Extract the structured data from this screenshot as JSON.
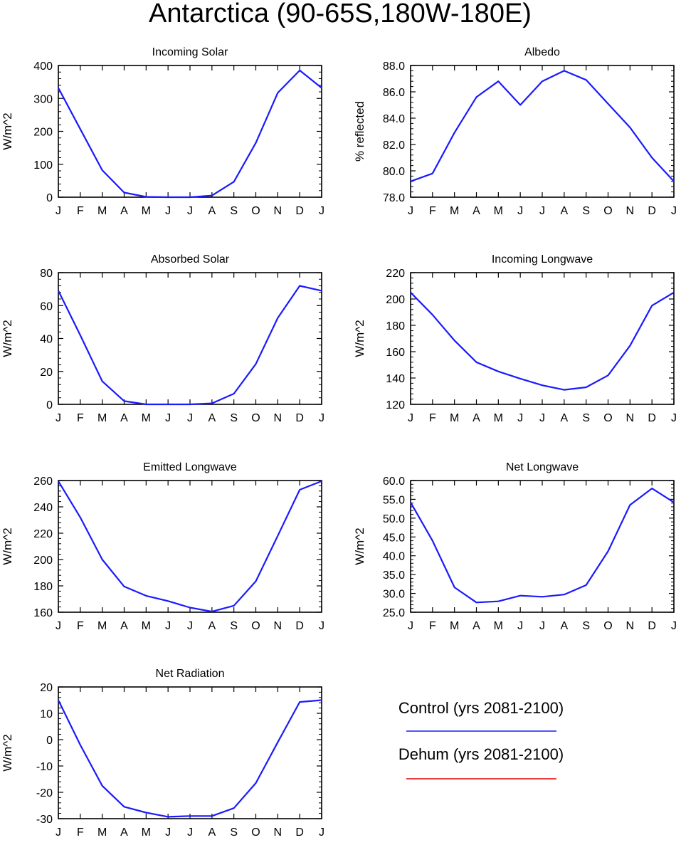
{
  "figure": {
    "title": "Antarctica (90-65S,180W-180E)"
  },
  "colors": {
    "control": "#1a1aff",
    "dehum": "#e60000",
    "axis": "#000000",
    "background": "#ffffff"
  },
  "legend": {
    "placement": "bottom-right",
    "entries": [
      {
        "label": "Control (yrs 2081-2100)",
        "color": "#1a1aff"
      },
      {
        "label": "Dehum (yrs 2081-2100)",
        "color": "#e60000"
      }
    ]
  },
  "chart_data": [
    {
      "id": "incoming-solar",
      "type": "line",
      "title": "Incoming Solar",
      "ylabel": "W/m^2",
      "xlabel": "",
      "x": [
        "J",
        "F",
        "M",
        "A",
        "M",
        "J",
        "J",
        "A",
        "S",
        "O",
        "N",
        "D",
        "J"
      ],
      "ylim": [
        0,
        400
      ],
      "yticks": [
        0,
        100,
        200,
        300,
        400
      ],
      "ytick_labels": [
        "0",
        "100",
        "200",
        "300",
        "400"
      ],
      "grid": false,
      "series": [
        {
          "values": [
            332,
            207,
            82,
            14,
            1,
            0,
            0,
            5,
            47,
            165,
            317,
            385,
            332
          ]
        }
      ]
    },
    {
      "id": "albedo",
      "type": "line",
      "title": "Albedo",
      "ylabel": "% reflected",
      "xlabel": "",
      "x": [
        "J",
        "F",
        "M",
        "A",
        "M",
        "J",
        "J",
        "A",
        "S",
        "O",
        "N",
        "D",
        "J"
      ],
      "ylim": [
        78,
        88
      ],
      "yticks": [
        78,
        80,
        82,
        84,
        86,
        88
      ],
      "ytick_labels": [
        "78.0",
        "80.0",
        "82.0",
        "84.0",
        "86.0",
        "88.0"
      ],
      "grid": false,
      "series": [
        {
          "values": [
            79.2,
            79.8,
            82.9,
            85.6,
            86.8,
            85.0,
            86.8,
            87.6,
            86.9,
            85.1,
            83.3,
            81.0,
            79.2
          ]
        }
      ]
    },
    {
      "id": "absorbed-solar",
      "type": "line",
      "title": "Absorbed Solar",
      "ylabel": "W/m^2",
      "xlabel": "",
      "x": [
        "J",
        "F",
        "M",
        "A",
        "M",
        "J",
        "J",
        "A",
        "S",
        "O",
        "N",
        "D",
        "J"
      ],
      "ylim": [
        0,
        80
      ],
      "yticks": [
        0,
        20,
        40,
        60,
        80
      ],
      "ytick_labels": [
        "0",
        "20",
        "40",
        "60",
        "80"
      ],
      "grid": false,
      "series": [
        {
          "values": [
            69,
            42,
            14,
            2,
            0,
            0,
            0,
            0.6,
            6.5,
            24.5,
            52.5,
            72,
            69
          ]
        }
      ]
    },
    {
      "id": "incoming-longwave",
      "type": "line",
      "title": "Incoming Longwave",
      "ylabel": "W/m^2",
      "xlabel": "",
      "x": [
        "J",
        "F",
        "M",
        "A",
        "M",
        "J",
        "J",
        "A",
        "S",
        "O",
        "N",
        "D",
        "J"
      ],
      "ylim": [
        120,
        220
      ],
      "yticks": [
        120,
        140,
        160,
        180,
        200,
        220
      ],
      "ytick_labels": [
        "120",
        "140",
        "160",
        "180",
        "200",
        "220"
      ],
      "grid": false,
      "series": [
        {
          "values": [
            205,
            188,
            168.5,
            152,
            145,
            139.5,
            134.5,
            131,
            133,
            142,
            164.5,
            195,
            205
          ]
        }
      ]
    },
    {
      "id": "emitted-longwave",
      "type": "line",
      "title": "Emitted Longwave",
      "ylabel": "W/m^2",
      "xlabel": "",
      "x": [
        "J",
        "F",
        "M",
        "A",
        "M",
        "J",
        "J",
        "A",
        "S",
        "O",
        "N",
        "D",
        "J"
      ],
      "ylim": [
        160,
        260
      ],
      "yticks": [
        160,
        180,
        200,
        220,
        240,
        260
      ],
      "ytick_labels": [
        "160",
        "180",
        "200",
        "220",
        "240",
        "260"
      ],
      "grid": false,
      "series": [
        {
          "values": [
            259.5,
            232,
            200,
            179.5,
            172.5,
            168.5,
            163.5,
            160.5,
            165,
            183.5,
            218,
            253,
            259.5
          ]
        }
      ]
    },
    {
      "id": "net-longwave",
      "type": "line",
      "title": "Net Longwave",
      "ylabel": "W/m^2",
      "xlabel": "",
      "x": [
        "J",
        "F",
        "M",
        "A",
        "M",
        "J",
        "J",
        "A",
        "S",
        "O",
        "N",
        "D",
        "J"
      ],
      "ylim": [
        25,
        60
      ],
      "yticks": [
        25,
        30,
        35,
        40,
        45,
        50,
        55,
        60
      ],
      "ytick_labels": [
        "25.0",
        "30.0",
        "35.0",
        "40.0",
        "45.0",
        "50.0",
        "55.0",
        "60.0"
      ],
      "grid": false,
      "series": [
        {
          "values": [
            54.2,
            44,
            31.6,
            27.6,
            27.9,
            29.4,
            29.1,
            29.7,
            32.2,
            41.2,
            53.5,
            57.9,
            54.2
          ]
        }
      ]
    },
    {
      "id": "net-radiation",
      "type": "line",
      "title": "Net Radiation",
      "ylabel": "W/m^2",
      "xlabel": "",
      "x": [
        "J",
        "F",
        "M",
        "A",
        "M",
        "J",
        "J",
        "A",
        "S",
        "O",
        "N",
        "D",
        "J"
      ],
      "ylim": [
        -30,
        20
      ],
      "yticks": [
        -30,
        -20,
        -10,
        0,
        10,
        20
      ],
      "ytick_labels": [
        "-30",
        "-20",
        "-10",
        "0",
        "10",
        "20"
      ],
      "grid": false,
      "series": [
        {
          "values": [
            15,
            -2,
            -17.5,
            -25.5,
            -27.7,
            -29.3,
            -29,
            -29,
            -26,
            -16.5,
            -1,
            14.3,
            15
          ]
        }
      ]
    }
  ]
}
